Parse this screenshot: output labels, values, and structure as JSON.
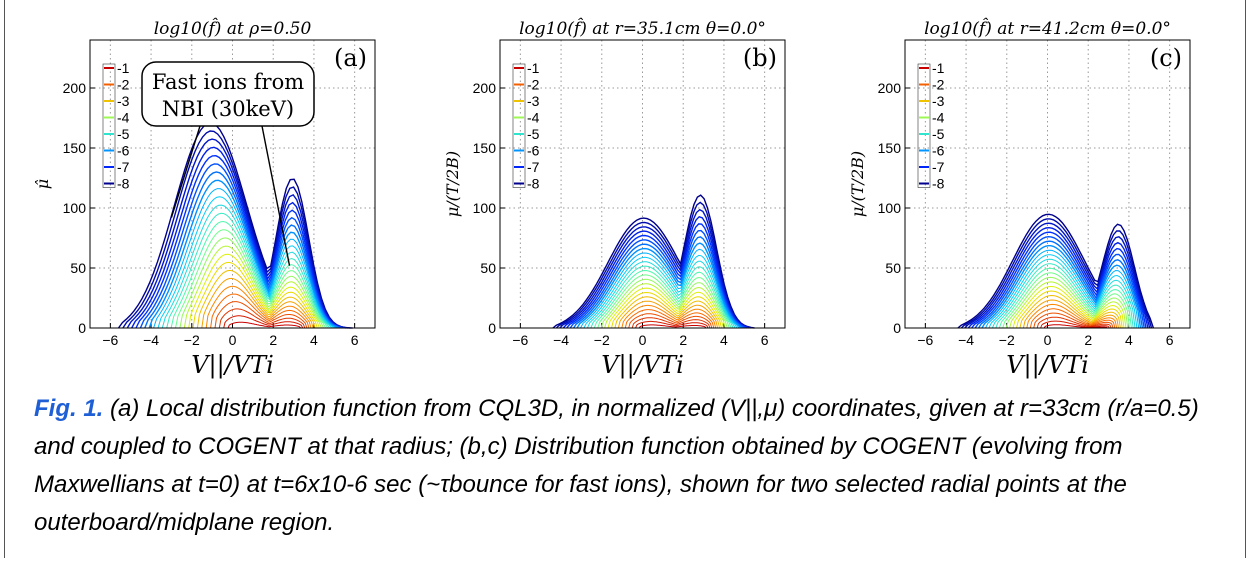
{
  "figure": {
    "caption": {
      "label": "Fig. 1.",
      "text": "(a) Local distribution function from CQL3D, in normalized (V||,μ) coordinates, given at r=33cm (r/a=0.5) and coupled to COGENT at that radius;  (b,c) Distribution function obtained by COGENT (evolving from Maxwellians at t=0) at t=6x10-6 sec (~τbounce for fast ions), shown for two selected radial points at the outerboard/midplane region."
    }
  },
  "chart_data": [
    {
      "type": "contour",
      "panel_label": "(a)",
      "title": "log10(f̂) at ρ=0.50",
      "xlabel": "V||/VTi",
      "ylabel": "μ̂",
      "xlim": [
        -7,
        7
      ],
      "ylim": [
        0,
        240
      ],
      "xticks": [
        -6,
        -4,
        -2,
        0,
        2,
        4,
        6
      ],
      "yticks": [
        0,
        50,
        100,
        150,
        200
      ],
      "grid": true,
      "colorbar_levels": [
        -1,
        -2,
        -3,
        -4,
        -5,
        -6,
        -7,
        -8
      ],
      "annotation": "Fast ions from NBI (30keV)",
      "envelope": {
        "left_edge": -5.6,
        "right_edge": 5.9,
        "peak_x": -1.2,
        "peak_mu": 175,
        "second_peak_x": 3.0,
        "second_peak_mu": 140
      }
    },
    {
      "type": "contour",
      "panel_label": "(b)",
      "title": "log10(f̂) at r=35.1cm θ=0.0°",
      "xlabel": "V||/VTi",
      "ylabel": "μ/(T/2B)",
      "xlim": [
        -7,
        7
      ],
      "ylim": [
        0,
        240
      ],
      "xticks": [
        -6,
        -4,
        -2,
        0,
        2,
        4,
        6
      ],
      "yticks": [
        0,
        50,
        100,
        150,
        200
      ],
      "grid": true,
      "colorbar_levels": [
        -1,
        -2,
        -3,
        -4,
        -5,
        -6,
        -7,
        -8
      ],
      "envelope": {
        "left_edge": -4.4,
        "right_edge": 5.5,
        "peak_x": 0.0,
        "peak_mu": 92,
        "second_peak_x": 2.9,
        "second_peak_mu": 123
      }
    },
    {
      "type": "contour",
      "panel_label": "(c)",
      "title": "log10(f̂) at r=41.2cm θ=0.0°",
      "xlabel": "V||/VTi",
      "ylabel": "μ/(T/2B)",
      "xlim": [
        -7,
        7
      ],
      "ylim": [
        0,
        240
      ],
      "xticks": [
        -6,
        -4,
        -2,
        0,
        2,
        4,
        6
      ],
      "yticks": [
        0,
        50,
        100,
        150,
        200
      ],
      "grid": true,
      "colorbar_levels": [
        -1,
        -2,
        -3,
        -4,
        -5,
        -6,
        -7,
        -8
      ],
      "envelope": {
        "left_edge": -4.4,
        "right_edge": 5.2,
        "peak_x": 0.0,
        "peak_mu": 95,
        "second_peak_x": 3.6,
        "second_peak_mu": 109
      }
    }
  ]
}
